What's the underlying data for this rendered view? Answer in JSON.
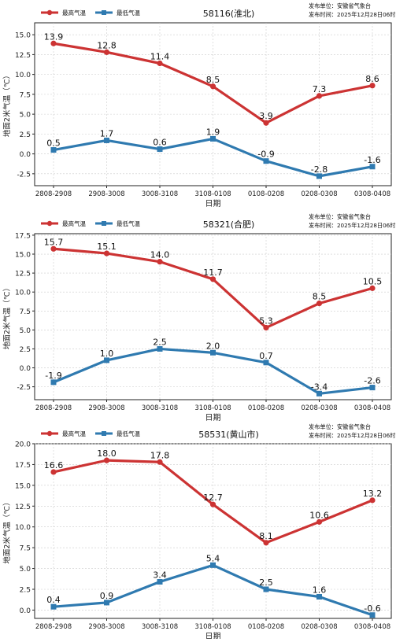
{
  "meta": {
    "max_series_name": "最高气温",
    "min_series_name": "最低气温",
    "publisher_line": "发布单位：安徽省气象台",
    "time_line": "发布时间：2025年12月28日06时",
    "ylabel": "地面2米气温（℃）",
    "xlabel": "日期",
    "colors": {
      "max": "#cc3333",
      "min": "#2f7ab0"
    }
  },
  "chart_data": [
    {
      "type": "line",
      "title": "58116(淮北)",
      "categories": [
        "2808-2908",
        "2908-3008",
        "3008-3108",
        "3108-0108",
        "0108-0208",
        "0208-0308",
        "0308-0408"
      ],
      "series": [
        {
          "name": "最高气温",
          "values": [
            13.9,
            12.8,
            11.4,
            8.5,
            3.9,
            7.3,
            8.6
          ],
          "labels": [
            "13.9",
            "12.8",
            "11.4",
            "8.5",
            "3.9",
            "7.3",
            "8.6"
          ]
        },
        {
          "name": "最低气温",
          "values": [
            0.5,
            1.7,
            0.6,
            1.9,
            -0.9,
            -2.8,
            -1.6
          ],
          "labels": [
            "0.5",
            "1.7",
            "0.6",
            "1.9",
            "-0.9",
            "-2.8",
            "-1.6"
          ]
        }
      ],
      "ylim": [
        -4.0,
        16.5
      ],
      "yticks": [
        -2.5,
        0.0,
        2.5,
        5.0,
        7.5,
        10.0,
        12.5,
        15.0
      ],
      "ytick_labels": [
        "-2.5",
        "0.0",
        "2.5",
        "5.0",
        "7.5",
        "10.0",
        "12.5",
        "15.0"
      ],
      "xlabel": "日期",
      "ylabel": "地面2米气温（℃）",
      "grid": true,
      "legend": "top-left"
    },
    {
      "type": "line",
      "title": "58321(合肥)",
      "categories": [
        "2808-2908",
        "2908-3008",
        "3008-3108",
        "3108-0108",
        "0108-0208",
        "0208-0308",
        "0308-0408"
      ],
      "series": [
        {
          "name": "最高气温",
          "values": [
            15.7,
            15.1,
            14.0,
            11.7,
            5.3,
            8.5,
            10.5
          ],
          "labels": [
            "15.7",
            "15.1",
            "14.0",
            "11.7",
            "5.3",
            "8.5",
            "10.5"
          ]
        },
        {
          "name": "最低气温",
          "values": [
            -1.9,
            1.0,
            2.5,
            2.0,
            0.7,
            -3.4,
            -2.6
          ],
          "labels": [
            "-1.9",
            "1.0",
            "2.5",
            "2.0",
            "0.7",
            "-3.4",
            "-2.6"
          ]
        }
      ],
      "ylim": [
        -4.2,
        17.7
      ],
      "yticks": [
        -2.5,
        0.0,
        2.5,
        5.0,
        7.5,
        10.0,
        12.5,
        15.0,
        17.5
      ],
      "ytick_labels": [
        "-2.5",
        "0.0",
        "2.5",
        "5.0",
        "7.5",
        "10.0",
        "12.5",
        "15.0",
        "17.5"
      ],
      "xlabel": "日期",
      "ylabel": "地面2米气温（℃）",
      "grid": true,
      "legend": "top-left"
    },
    {
      "type": "line",
      "title": "58531(黄山市)",
      "categories": [
        "2808-2908",
        "2908-3008",
        "3008-3108",
        "3108-0108",
        "0108-0208",
        "0208-0308",
        "0308-0408"
      ],
      "series": [
        {
          "name": "最高气温",
          "values": [
            16.6,
            18.0,
            17.8,
            12.7,
            8.1,
            10.6,
            13.2
          ],
          "labels": [
            "16.6",
            "18.0",
            "17.8",
            "12.7",
            "8.1",
            "10.6",
            "13.2"
          ]
        },
        {
          "name": "最低气温",
          "values": [
            0.4,
            0.9,
            3.4,
            5.4,
            2.5,
            1.6,
            -0.6
          ],
          "labels": [
            "0.4",
            "0.9",
            "3.4",
            "5.4",
            "2.5",
            "1.6",
            "-0.6"
          ]
        }
      ],
      "ylim": [
        -1.0,
        20.0
      ],
      "yticks": [
        0.0,
        2.5,
        5.0,
        7.5,
        10.0,
        12.5,
        15.0,
        17.5,
        20.0
      ],
      "ytick_labels": [
        "0.0",
        "2.5",
        "5.0",
        "7.5",
        "10.0",
        "12.5",
        "15.0",
        "17.5",
        "20.0"
      ],
      "xlabel": "日期",
      "ylabel": "地面2米气温（℃）",
      "grid": true,
      "legend": "top-left"
    }
  ]
}
